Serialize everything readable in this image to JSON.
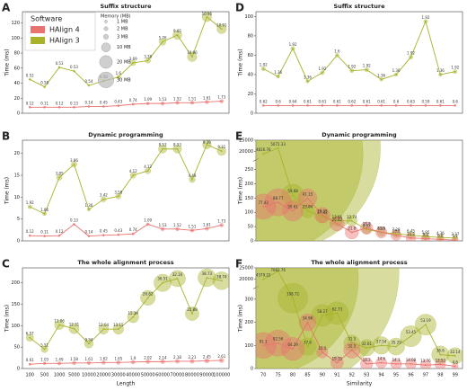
{
  "legend": {
    "title": "Software",
    "memory_title": "Memory (MB)",
    "series": [
      {
        "name": "HAlign 4",
        "color": "#e8736f"
      },
      {
        "name": "HAlign 3",
        "color": "#a8b32a"
      }
    ],
    "memory_sizes": [
      {
        "value": 1,
        "label": "1 MB"
      },
      {
        "value": 2,
        "label": "2 MB"
      },
      {
        "value": 3,
        "label": "3 MB"
      },
      {
        "value": 10,
        "label": "10 MB"
      },
      {
        "value": 20,
        "label": "20 MB"
      },
      {
        "value": 30,
        "label": "30 MB"
      }
    ]
  },
  "chart_data": [
    {
      "type": "bubble",
      "panel": "A",
      "title": "Suffix structure",
      "ylabel": "Time (ms)",
      "ylim": [
        0,
        135
      ],
      "yticks": [
        0,
        20,
        40,
        60,
        80,
        100,
        120
      ],
      "series": [
        {
          "values": [
            8,
            8,
            8,
            8,
            9,
            9,
            10,
            12,
            13,
            13,
            14,
            14,
            15,
            16
          ],
          "sizes": [
            0.12,
            0.11,
            0.12,
            0.13,
            0.14,
            0.45,
            0.43,
            0.74,
            1.09,
            1.53,
            1.52,
            1.51,
            1.61,
            1.73
          ]
        },
        {
          "values": [
            45,
            35,
            61,
            56,
            37,
            43,
            48,
            67,
            70,
            95,
            104,
            75,
            128,
            112
          ],
          "sizes": [
            0.52,
            0.58,
            0.53,
            0.53,
            0.54,
            0.58,
            1.6,
            3.69,
            3.38,
            5.76,
            9.65,
            10.96,
            10.96,
            10.91
          ]
        }
      ]
    },
    {
      "type": "bubble",
      "panel": "B",
      "title": "Dynamic programming",
      "ylabel": "Time (ms)",
      "ylim": [
        0,
        23
      ],
      "yticks": [
        0,
        5,
        10,
        15,
        20
      ],
      "series": [
        {
          "values": [
            1.2,
            1.1,
            1.2,
            3.8,
            1.1,
            1.3,
            1.4,
            1.6,
            3.8,
            2.7,
            2.7,
            2.4,
            2.8,
            3.6
          ],
          "sizes": [
            0.12,
            0.11,
            0.12,
            0.13,
            0.14,
            0.45,
            0.43,
            0.74,
            1.09,
            1.53,
            1.52,
            1.51,
            1.61,
            1.73
          ]
        },
        {
          "values": [
            7.8,
            6.2,
            14.5,
            17.5,
            7.2,
            9.5,
            10.2,
            15,
            16,
            21,
            21,
            14,
            22,
            20.5
          ],
          "sizes": [
            1.92,
            1.86,
            3.85,
            3.86,
            1.36,
            3.42,
            3.58,
            4.12,
            4.12,
            8.53,
            8.53,
            4.48,
            9.39,
            9.31
          ]
        }
      ]
    },
    {
      "type": "bubble",
      "panel": "C",
      "title": "The whole alignment process",
      "ylabel": "Time (ms)",
      "xlabel": "Length",
      "categories": [
        "100",
        "500",
        "1000",
        "5000",
        "10000",
        "20000",
        "30000",
        "40000",
        "50000",
        "60000",
        "70000",
        "80000",
        "90000",
        "100000"
      ],
      "ylim": [
        0,
        235
      ],
      "yticks": [
        0,
        50,
        100,
        150,
        200
      ],
      "series": [
        {
          "values": [
            10,
            12,
            12,
            13,
            13,
            14,
            14,
            15,
            16,
            16,
            17,
            17,
            18,
            19
          ],
          "sizes": [
            0.61,
            1.03,
            1.49,
            1.58,
            1.61,
            1.62,
            1.65,
            1.9,
            2.02,
            2.14,
            2.18,
            2.21,
            2.45,
            2.61
          ]
        },
        {
          "values": [
            72,
            45,
            102,
            93,
            58,
            92,
            92,
            120,
            165,
            200,
            210,
            128,
            212,
            205
          ],
          "sizes": [
            6.57,
            5.51,
            11.06,
            12.31,
            9.34,
            12.04,
            13.15,
            15.39,
            26.82,
            36.51,
            32.16,
            22.88,
            38.73,
            38.74
          ]
        }
      ]
    },
    {
      "type": "bubble",
      "panel": "D",
      "title": "Suffix structure",
      "ylabel": "Time (ms)",
      "ylim": [
        0,
        105
      ],
      "yticks": [
        0,
        20,
        40,
        60,
        80,
        100
      ],
      "series": [
        {
          "values": [
            8,
            8,
            8,
            8,
            8,
            8,
            8,
            8,
            8,
            8,
            8,
            8,
            8,
            8
          ],
          "sizes": [
            0.62,
            0.6,
            0.64,
            0.61,
            0.61,
            0.61,
            0.62,
            0.61,
            0.61,
            0.6,
            0.63,
            0.59,
            0.61,
            0.6
          ]
        },
        {
          "values": [
            46,
            38,
            67,
            33,
            42,
            60,
            44,
            45,
            35,
            40,
            58,
            95,
            40,
            43
          ],
          "sizes": [
            1.92,
            1.36,
            1.92,
            1.36,
            1.92,
            1.6,
            1.92,
            1.92,
            1.36,
            1.36,
            1.92,
            1.92,
            1.36,
            1.92
          ]
        }
      ]
    },
    {
      "type": "bubble",
      "panel": "E",
      "title": "Dynamic programming",
      "ylabel": "Time (ms)",
      "ylim": [
        0,
        25000
      ],
      "ybreak": [
        275,
        17500
      ],
      "yticks": [
        0,
        50,
        100,
        150,
        200,
        250,
        20000,
        25000
      ],
      "series": [
        {
          "values": [
            120,
            135,
            105,
            150,
            90,
            60,
            30,
            45,
            30,
            20,
            10,
            8,
            5,
            3
          ],
          "sizes": [
            77.42,
            88.77,
            50.61,
            41.15,
            29.35,
            25.42,
            21.8,
            18.8,
            15.6,
            13.2,
            11.3,
            9.2,
            6.8,
            5.1
          ]
        },
        {
          "values": [
            19000,
            21500,
            160,
            105,
            85,
            70,
            70,
            40,
            30,
            25,
            20,
            15,
            12,
            10
          ],
          "sizes": [
            4816.76,
            5072.33,
            59.68,
            23.84,
            17.92,
            13.66,
            12.74,
            9.53,
            8.15,
            7.28,
            6.45,
            5.95,
            4.36,
            3.37
          ]
        }
      ]
    },
    {
      "type": "bubble",
      "panel": "F",
      "title": "The whole alignment process",
      "ylabel": "Time (ms)",
      "xlabel": "Similarity",
      "categories": [
        "70",
        "75",
        "80",
        "85",
        "90",
        "91",
        "92",
        "93",
        "94",
        "95",
        "96",
        "97",
        "98",
        "99"
      ],
      "ylim": [
        0,
        25000
      ],
      "ybreak": [
        340,
        17500
      ],
      "yticks": [
        0,
        100,
        200,
        300,
        20000,
        25000
      ],
      "series": [
        {
          "values": [
            100,
            110,
            85,
            200,
            70,
            25,
            80,
            20,
            25,
            20,
            20,
            15,
            18,
            10
          ],
          "sizes": [
            81.1,
            82.56,
            64.29,
            34.96,
            15.5,
            19.35,
            32.5,
            18.2,
            14.6,
            14.3,
            14.08,
            13.76,
            13.53,
            4.6
          ]
        },
        {
          "values": [
            20000,
            23500,
            305,
            95,
            230,
            240,
            110,
            90,
            100,
            95,
            140,
            190,
            60,
            55
          ],
          "sizes": [
            4379.22,
            7083.76,
            108.72,
            37.6,
            58.27,
            62.73,
            31.5,
            32.61,
            37.54,
            35.29,
            53.45,
            53.19,
            36.6,
            32.14
          ]
        }
      ]
    }
  ]
}
